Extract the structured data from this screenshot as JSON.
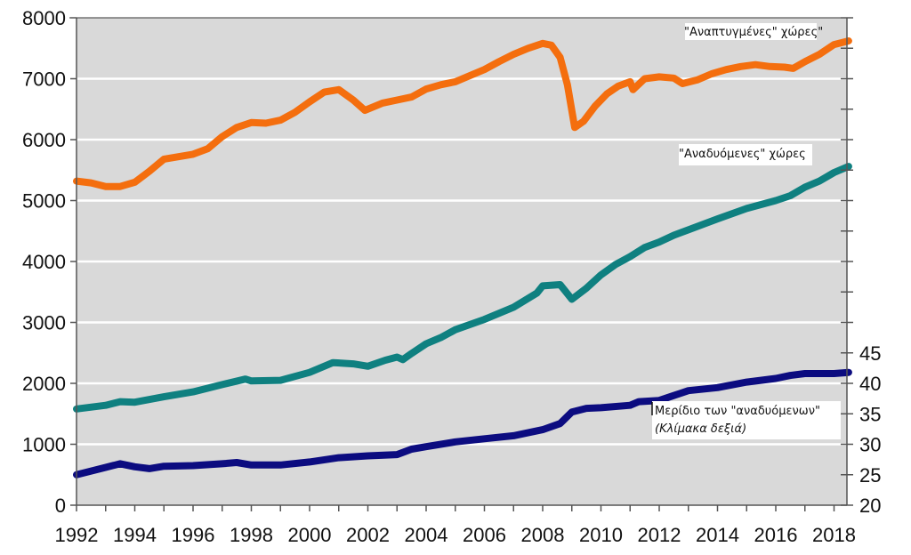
{
  "chart_data": {
    "type": "line",
    "title": "",
    "xlabel": "",
    "ylabel": "",
    "xlim": [
      1992,
      2018.5
    ],
    "ylim": [
      0,
      8000
    ],
    "y2lim": [
      20,
      100
    ],
    "grid": true,
    "colors": {
      "plot_bg": "#d9d9d9",
      "grid": "#ffffff",
      "developed": "#f46e0e",
      "emerging": "#0f8080",
      "share": "#0c0c80"
    },
    "x_ticks": [
      "1992",
      "1994",
      "1996",
      "1998",
      "2000",
      "2002",
      "2004",
      "2006",
      "2008",
      "2010",
      "2012",
      "2014",
      "2016",
      "2018"
    ],
    "y_ticks": [
      "0",
      "1000",
      "2000",
      "3000",
      "4000",
      "5000",
      "6000",
      "7000",
      "8000"
    ],
    "y2_ticks": [
      "20",
      "25",
      "30",
      "35",
      "40",
      "45"
    ],
    "annotations": {
      "developed": "\"Αναπτυγμένες\" χώρες\"",
      "emerging": "\"Αναδυόμενες\" χώρες",
      "share_line1": "Μερίδιο των \"αναδυόμενων\"",
      "share_line2": "(Κλίμακα δεξιά)"
    },
    "series": [
      {
        "name": "\"Αναπτυγμένες\" χώρες",
        "axis": "left",
        "x": [
          1992,
          1992.5,
          1993,
          1993.5,
          1994,
          1994.5,
          1995,
          1995.5,
          1996,
          1996.5,
          1997,
          1997.5,
          1998,
          1998.5,
          1999,
          1999.5,
          2000,
          2000.5,
          2001,
          2001.5,
          2001.9,
          2002.5,
          2003,
          2003.5,
          2004,
          2004.5,
          2005,
          2005.5,
          2006,
          2006.5,
          2007,
          2007.5,
          2008,
          2008.3,
          2008.6,
          2008.85,
          2009.1,
          2009.4,
          2009.8,
          2010.2,
          2010.6,
          2011,
          2011.1,
          2011.5,
          2012,
          2012.5,
          2012.8,
          2013.3,
          2013.8,
          2014.3,
          2014.8,
          2015.3,
          2015.8,
          2016.3,
          2016.6,
          2017,
          2017.5,
          2018,
          2018.5
        ],
        "values": [
          5320,
          5290,
          5230,
          5230,
          5300,
          5480,
          5680,
          5720,
          5760,
          5850,
          6050,
          6200,
          6280,
          6270,
          6320,
          6450,
          6620,
          6780,
          6820,
          6650,
          6480,
          6600,
          6650,
          6700,
          6830,
          6900,
          6950,
          7050,
          7150,
          7280,
          7400,
          7500,
          7580,
          7550,
          7350,
          6900,
          6200,
          6300,
          6550,
          6750,
          6880,
          6950,
          6820,
          7000,
          7030,
          7010,
          6920,
          6980,
          7080,
          7150,
          7200,
          7230,
          7200,
          7190,
          7170,
          7280,
          7400,
          7560,
          7620
        ]
      },
      {
        "name": "\"Αναδυόμενες\" χώρες",
        "axis": "left",
        "x": [
          1992,
          1993,
          1993.5,
          1994,
          1995,
          1996,
          1997,
          1997.8,
          1998,
          1999,
          2000,
          2000.8,
          2001.5,
          2002,
          2002.6,
          2003,
          2003.2,
          2003.5,
          2004,
          2004.5,
          2005,
          2006,
          2007,
          2007.8,
          2008,
          2008.6,
          2009,
          2009.5,
          2010,
          2010.5,
          2011,
          2011.5,
          2012,
          2012.5,
          2013,
          2014,
          2015,
          2016,
          2016.5,
          2017,
          2017.5,
          2018,
          2018.5
        ],
        "values": [
          1580,
          1640,
          1700,
          1690,
          1780,
          1860,
          1980,
          2070,
          2040,
          2050,
          2180,
          2340,
          2320,
          2280,
          2380,
          2430,
          2390,
          2490,
          2650,
          2750,
          2880,
          3050,
          3250,
          3480,
          3600,
          3620,
          3380,
          3560,
          3780,
          3950,
          4080,
          4230,
          4320,
          4430,
          4520,
          4700,
          4870,
          5000,
          5080,
          5220,
          5320,
          5460,
          5560
        ]
      },
      {
        "name": "Μερίδιο των \"αναδυόμενων\" (Κλίμακα δεξιά)",
        "axis": "right",
        "x": [
          1992,
          1993,
          1993.5,
          1994,
          1994.5,
          1995,
          1996,
          1997,
          1997.5,
          1998,
          1999,
          2000,
          2001,
          2002,
          2003,
          2003.5,
          2004,
          2005,
          2006,
          2007,
          2008,
          2008.6,
          2009,
          2009.5,
          2010,
          2011,
          2011.3,
          2012,
          2012.5,
          2013,
          2014,
          2015,
          2016,
          2016.5,
          2017,
          2018,
          2018.5
        ],
        "values": [
          25,
          26.2,
          26.8,
          26.3,
          26.0,
          26.4,
          26.5,
          26.8,
          27.0,
          26.6,
          26.6,
          27.1,
          27.8,
          28.1,
          28.3,
          29.2,
          29.6,
          30.4,
          30.9,
          31.4,
          32.4,
          33.4,
          35.3,
          35.9,
          36.0,
          36.4,
          37.0,
          37.2,
          38.0,
          38.8,
          39.3,
          40.2,
          40.8,
          41.3,
          41.6,
          41.6,
          41.8
        ]
      }
    ]
  }
}
